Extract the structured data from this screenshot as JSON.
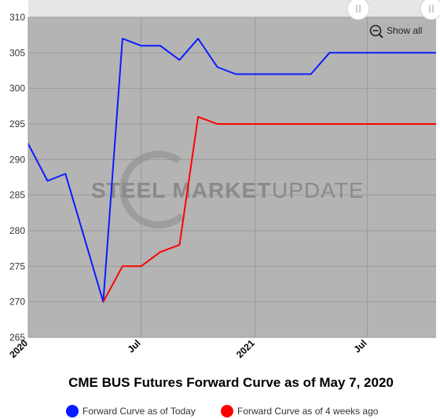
{
  "colors": {
    "plot_bg": "#b4b4b4",
    "navigator_bg": "#e6e6e6",
    "today": "#0a1cff",
    "weeks_ago": "#ff0000",
    "grid": "#9a9a9a"
  },
  "watermark": {
    "brand_bold": "STEEL MARKET",
    "brand_light": "UPDATE"
  },
  "controls": {
    "show_all_label": "Show all",
    "zoom_icon": "zoom-out-icon",
    "handle_left_icon": "slider-handle-icon",
    "handle_right_icon": "slider-handle-icon"
  },
  "chart_data": {
    "type": "line",
    "title": "CME BUS Futures Forward Curve as of May 7, 2020",
    "xlabel": "",
    "ylabel": "",
    "ylim": [
      265,
      310
    ],
    "yticks": [
      265,
      270,
      275,
      280,
      285,
      290,
      295,
      300,
      305,
      310
    ],
    "xlim": [
      "2020-01-01",
      "2021-10-20"
    ],
    "xticks": [
      {
        "date": "2020-01-01",
        "label": "2020"
      },
      {
        "date": "2020-07-01",
        "label": "Jul"
      },
      {
        "date": "2021-01-01",
        "label": "2021"
      },
      {
        "date": "2021-07-01",
        "label": "Jul"
      }
    ],
    "grid": true,
    "legend_position": "bottom-center",
    "series": [
      {
        "name": "Forward Curve as of Today",
        "color": "#0a1cff",
        "points": [
          {
            "x": "2019-12-27",
            "y": 293
          },
          {
            "x": "2020-02-01",
            "y": 287
          },
          {
            "x": "2020-03-01",
            "y": 288
          },
          {
            "x": "2020-05-01",
            "y": 270
          },
          {
            "x": "2020-06-01",
            "y": 307
          },
          {
            "x": "2020-07-01",
            "y": 306
          },
          {
            "x": "2020-08-01",
            "y": 306
          },
          {
            "x": "2020-09-01",
            "y": 304
          },
          {
            "x": "2020-10-01",
            "y": 307
          },
          {
            "x": "2020-11-01",
            "y": 303
          },
          {
            "x": "2020-12-01",
            "y": 302
          },
          {
            "x": "2021-01-01",
            "y": 302
          },
          {
            "x": "2021-02-01",
            "y": 302
          },
          {
            "x": "2021-03-01",
            "y": 302
          },
          {
            "x": "2021-04-01",
            "y": 302
          },
          {
            "x": "2021-05-01",
            "y": 305
          },
          {
            "x": "2021-06-01",
            "y": 305
          },
          {
            "x": "2021-07-01",
            "y": 305
          },
          {
            "x": "2021-08-01",
            "y": 305
          },
          {
            "x": "2021-09-01",
            "y": 305
          },
          {
            "x": "2021-10-20",
            "y": 305
          }
        ]
      },
      {
        "name": "Forward Curve as of 4 weeks ago",
        "color": "#ff0000",
        "points": [
          {
            "x": "2020-05-01",
            "y": 270
          },
          {
            "x": "2020-06-01",
            "y": 275
          },
          {
            "x": "2020-07-01",
            "y": 275
          },
          {
            "x": "2020-08-01",
            "y": 277
          },
          {
            "x": "2020-09-01",
            "y": 278
          },
          {
            "x": "2020-10-01",
            "y": 296
          },
          {
            "x": "2020-11-01",
            "y": 295
          },
          {
            "x": "2020-12-01",
            "y": 295
          },
          {
            "x": "2021-01-01",
            "y": 295
          },
          {
            "x": "2021-02-01",
            "y": 295
          },
          {
            "x": "2021-03-01",
            "y": 295
          },
          {
            "x": "2021-04-01",
            "y": 295
          },
          {
            "x": "2021-05-01",
            "y": 295
          },
          {
            "x": "2021-06-01",
            "y": 295
          },
          {
            "x": "2021-07-01",
            "y": 295
          },
          {
            "x": "2021-08-01",
            "y": 295
          },
          {
            "x": "2021-09-01",
            "y": 295
          },
          {
            "x": "2021-10-20",
            "y": 295
          }
        ]
      }
    ]
  }
}
